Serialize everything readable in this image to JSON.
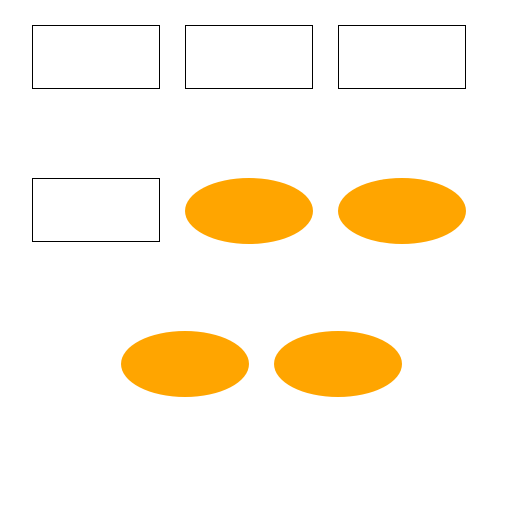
{
  "colors": {
    "background": "#ffffff",
    "box_border": "#000000",
    "box_fill": "#ffffff",
    "oval_fill": "#FFA500"
  },
  "board": {
    "rows": [
      {
        "items": [
          {
            "shape": "rectangle"
          },
          {
            "shape": "rectangle"
          },
          {
            "shape": "rectangle"
          }
        ]
      },
      {
        "items": [
          {
            "shape": "rectangle"
          },
          {
            "shape": "oval"
          },
          {
            "shape": "oval"
          }
        ]
      },
      {
        "items": [
          {
            "shape": "oval"
          },
          {
            "shape": "oval"
          }
        ]
      }
    ]
  }
}
